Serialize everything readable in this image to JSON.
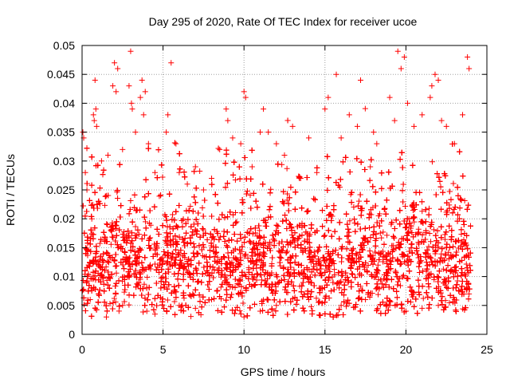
{
  "chart_data": {
    "type": "scatter",
    "title": "Day 295 of 2020, Rate Of TEC Index for receiver ucoe",
    "xlabel": "GPS time / hours",
    "ylabel": "ROTI / TECUs",
    "xlim": [
      0,
      25
    ],
    "ylim": [
      0,
      0.05
    ],
    "xticks": [
      0,
      5,
      10,
      15,
      20,
      25
    ],
    "xtick_labels": [
      "0",
      "5",
      "10",
      "15",
      "20",
      "25"
    ],
    "yticks": [
      0,
      0.005,
      0.01,
      0.015,
      0.02,
      0.025,
      0.03,
      0.035,
      0.04,
      0.045,
      0.05
    ],
    "ytick_labels": [
      "0",
      "0.005",
      "0.01",
      "0.015",
      "0.02",
      "0.025",
      "0.03",
      "0.035",
      "0.04",
      "0.045",
      "0.05"
    ],
    "grid": true,
    "marker": "+",
    "color": "#ff0000",
    "data_range_hours": [
      0,
      24
    ],
    "series": [
      {
        "name": "ROTI",
        "points": [
          [
            0.05,
            0.035
          ],
          [
            0.1,
            0.034
          ],
          [
            0.2,
            0.028
          ],
          [
            0.3,
            0.025
          ],
          [
            0.4,
            0.012
          ],
          [
            0.6,
            0.02
          ],
          [
            0.7,
            0.038
          ],
          [
            0.75,
            0.037
          ],
          [
            0.8,
            0.044
          ],
          [
            0.85,
            0.039
          ],
          [
            0.9,
            0.036
          ],
          [
            1.2,
            0.03
          ],
          [
            1.5,
            0.024
          ],
          [
            1.6,
            0.031
          ],
          [
            1.9,
            0.043
          ],
          [
            2.0,
            0.047
          ],
          [
            2.1,
            0.042
          ],
          [
            2.2,
            0.046
          ],
          [
            2.5,
            0.032
          ],
          [
            2.9,
            0.043
          ],
          [
            3.0,
            0.049
          ],
          [
            3.05,
            0.04
          ],
          [
            3.1,
            0.039
          ],
          [
            3.3,
            0.035
          ],
          [
            3.6,
            0.041
          ],
          [
            3.7,
            0.044
          ],
          [
            3.8,
            0.038
          ],
          [
            3.9,
            0.042
          ],
          [
            4.1,
            0.033
          ],
          [
            4.5,
            0.028
          ],
          [
            5.2,
            0.035
          ],
          [
            5.3,
            0.038
          ],
          [
            5.5,
            0.047
          ],
          [
            5.8,
            0.033
          ],
          [
            6.0,
            0.028
          ],
          [
            6.5,
            0.026
          ],
          [
            7.0,
            0.029
          ],
          [
            7.5,
            0.025
          ],
          [
            8.0,
            0.027
          ],
          [
            8.5,
            0.032
          ],
          [
            8.9,
            0.039
          ],
          [
            9.0,
            0.037
          ],
          [
            9.3,
            0.034
          ],
          [
            9.8,
            0.033
          ],
          [
            10.0,
            0.042
          ],
          [
            10.1,
            0.041
          ],
          [
            10.5,
            0.029
          ],
          [
            11.0,
            0.035
          ],
          [
            11.2,
            0.039
          ],
          [
            11.5,
            0.035
          ],
          [
            12.0,
            0.033
          ],
          [
            12.5,
            0.031
          ],
          [
            13.0,
            0.036
          ],
          [
            13.5,
            0.027
          ],
          [
            14.0,
            0.034
          ],
          [
            14.5,
            0.028
          ],
          [
            15.0,
            0.039
          ],
          [
            15.2,
            0.041
          ],
          [
            15.7,
            0.045
          ],
          [
            16.0,
            0.034
          ],
          [
            16.5,
            0.038
          ],
          [
            17.0,
            0.036
          ],
          [
            17.2,
            0.044
          ],
          [
            17.8,
            0.029
          ],
          [
            18.0,
            0.035
          ],
          [
            18.2,
            0.033
          ],
          [
            19.0,
            0.041
          ],
          [
            19.3,
            0.037
          ],
          [
            19.5,
            0.049
          ],
          [
            19.7,
            0.046
          ],
          [
            19.9,
            0.048
          ],
          [
            20.1,
            0.04
          ],
          [
            20.5,
            0.036
          ],
          [
            21.0,
            0.038
          ],
          [
            21.5,
            0.041
          ],
          [
            21.6,
            0.043
          ],
          [
            21.8,
            0.045
          ],
          [
            22.0,
            0.044
          ],
          [
            22.2,
            0.037
          ],
          [
            22.5,
            0.036
          ],
          [
            23.0,
            0.033
          ],
          [
            23.5,
            0.038
          ],
          [
            23.8,
            0.048
          ],
          [
            23.9,
            0.046
          ],
          [
            0.5,
            0.006
          ],
          [
            1.0,
            0.0055
          ],
          [
            1.5,
            0.003
          ],
          [
            2.5,
            0.005
          ],
          [
            4.0,
            0.004
          ],
          [
            4.5,
            0.0035
          ],
          [
            6.0,
            0.005
          ],
          [
            7.0,
            0.0045
          ],
          [
            8.0,
            0.006
          ],
          [
            10.0,
            0.003
          ],
          [
            11.0,
            0.004
          ],
          [
            12.0,
            0.005
          ],
          [
            14.0,
            0.006
          ],
          [
            16.0,
            0.005
          ],
          [
            17.5,
            0.006
          ],
          [
            19.0,
            0.005
          ],
          [
            20.0,
            0.004
          ],
          [
            21.0,
            0.0045
          ],
          [
            22.0,
            0.005
          ],
          [
            23.0,
            0.006
          ],
          [
            23.9,
            0.007
          ]
        ]
      }
    ]
  }
}
